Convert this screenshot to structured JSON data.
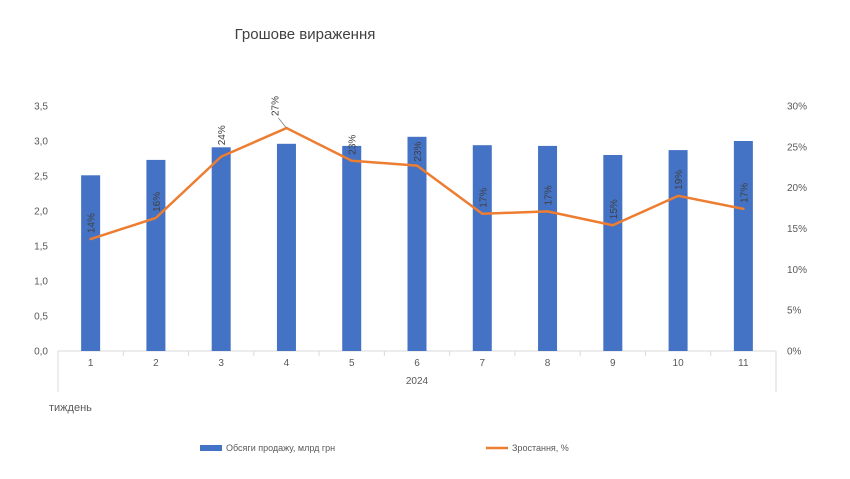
{
  "chart_data": {
    "type": "bar",
    "title": "Грошове вираження",
    "categories": [
      "1",
      "2",
      "3",
      "4",
      "5",
      "6",
      "7",
      "8",
      "9",
      "10",
      "11"
    ],
    "group_label": "2024",
    "xlabel": "тиждень",
    "ylim": [
      0,
      3.5
    ],
    "y_ticks": [
      "0,0",
      "0,5",
      "1,0",
      "1,5",
      "2,0",
      "2,5",
      "3,0",
      "3,5"
    ],
    "y2lim": [
      0,
      30
    ],
    "y2_ticks": [
      "0%",
      "5%",
      "10%",
      "15%",
      "20%",
      "25%",
      "30%"
    ],
    "grid": false,
    "legend_position": "bottom",
    "series": [
      {
        "name": "Обсяги продажу, млрд грн",
        "type": "bar",
        "axis": "left",
        "color": "#4472C4",
        "values": [
          2.51,
          2.73,
          2.91,
          2.96,
          2.93,
          3.06,
          2.94,
          2.93,
          2.8,
          2.87,
          3.0
        ]
      },
      {
        "name": "Зростання, %",
        "type": "line",
        "axis": "right",
        "color": "#ED7D31",
        "values": [
          13.7,
          16.3,
          23.8,
          27.3,
          23.3,
          22.7,
          16.8,
          17.1,
          15.4,
          19.0,
          17.4
        ],
        "labels": [
          "14%",
          "16%",
          "24%",
          "27%",
          "23%",
          "23%",
          "17%",
          "17%",
          "15%",
          "19%",
          "17%"
        ]
      }
    ]
  }
}
